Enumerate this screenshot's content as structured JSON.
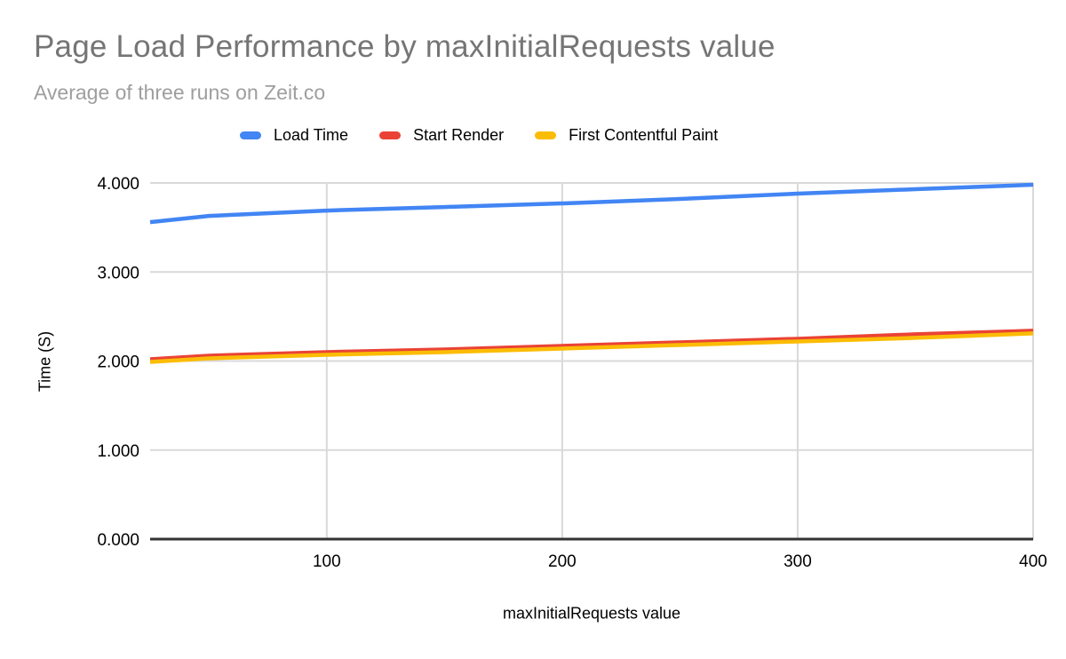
{
  "page": {
    "background": "#ffffff"
  },
  "chart_data": {
    "type": "line",
    "title": "Page Load Performance by maxInitialRequests value",
    "subtitle": "Average of three runs on Zeit.co",
    "xlabel": "maxInitialRequests value",
    "ylabel": "Time (S)",
    "xlim": [
      25,
      400
    ],
    "ylim": [
      0,
      4
    ],
    "grid": true,
    "legend_position": "top",
    "x": [
      25,
      50,
      100,
      150,
      200,
      250,
      300,
      350,
      400
    ],
    "series": [
      {
        "name": "Load Time",
        "color": "#4285F4",
        "values": [
          3.56,
          3.63,
          3.69,
          3.73,
          3.77,
          3.82,
          3.88,
          3.93,
          3.98
        ]
      },
      {
        "name": "Start Render",
        "color": "#EA4335",
        "values": [
          2.02,
          2.06,
          2.1,
          2.13,
          2.17,
          2.21,
          2.25,
          2.3,
          2.34
        ]
      },
      {
        "name": "First Contentful Paint",
        "color": "#FBBC04",
        "values": [
          1.99,
          2.03,
          2.07,
          2.1,
          2.14,
          2.18,
          2.22,
          2.26,
          2.31
        ]
      }
    ],
    "x_ticks": [
      {
        "value": 100,
        "label": "100"
      },
      {
        "value": 200,
        "label": "200"
      },
      {
        "value": 300,
        "label": "300"
      },
      {
        "value": 400,
        "label": "400"
      }
    ],
    "y_ticks": [
      {
        "value": 0,
        "label": "0.000"
      },
      {
        "value": 1,
        "label": "1.000"
      },
      {
        "value": 2,
        "label": "2.000"
      },
      {
        "value": 3,
        "label": "3.000"
      },
      {
        "value": 4,
        "label": "4.000"
      }
    ]
  },
  "colors": {
    "title_text": "#757575",
    "subtitle_text": "#9e9e9e",
    "axis_text": "#000000",
    "grid_line": "#d9d9d9",
    "axis_line": "#333333"
  }
}
